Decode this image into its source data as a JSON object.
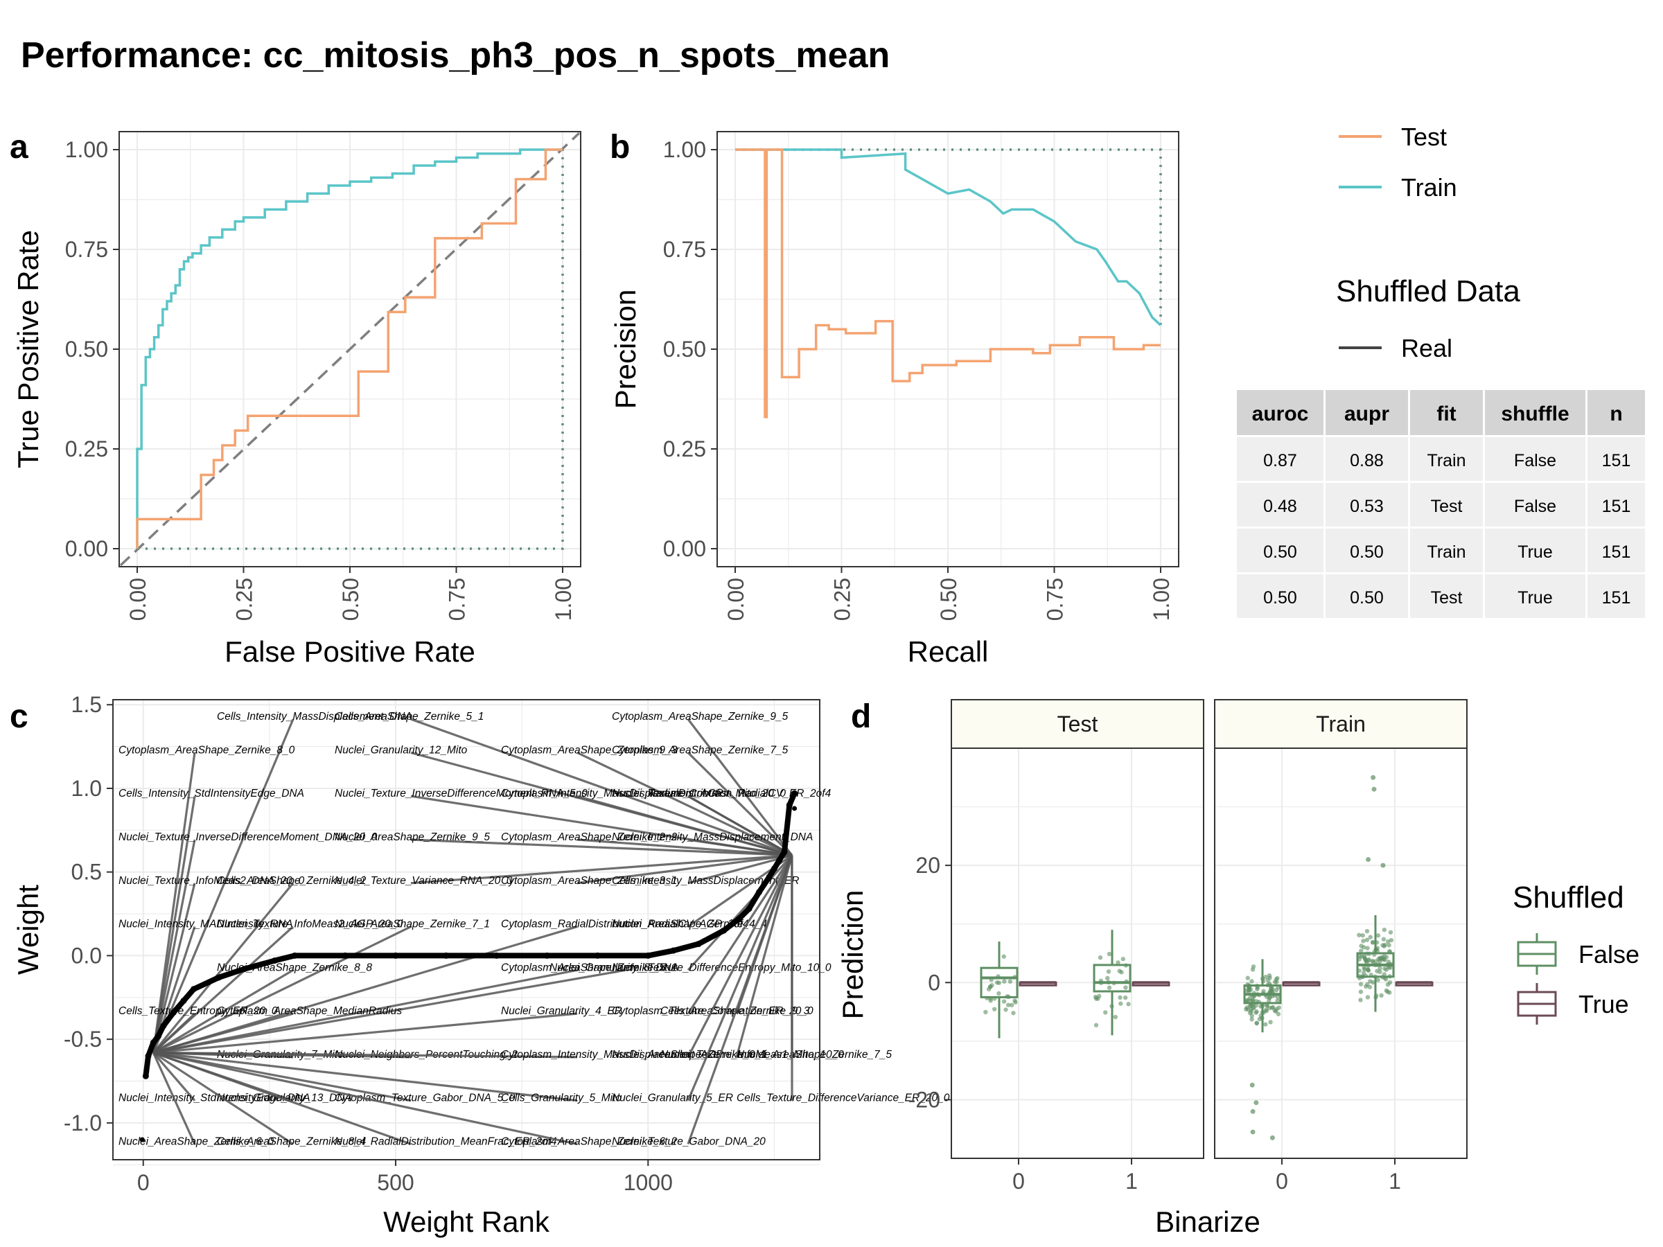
{
  "title": "Performance: cc_mitosis_ph3_pos_n_spots_mean",
  "colors": {
    "test": "#F4A371",
    "train": "#5BC5C8",
    "shuffled_false": "#5E8F63",
    "shuffled_true": "#6B4A57",
    "grid": "#EBEBEB",
    "strip_fill": "#FCFCF2",
    "table_header_fill": "#D4D4D4",
    "table_cell_fill": "#EFEFEF"
  },
  "panels": {
    "a": {
      "tag": "a",
      "xlabel": "False Positive Rate",
      "ylabel": "True Positive Rate",
      "xticks": [
        "0.00",
        "0.25",
        "0.50",
        "0.75",
        "1.00"
      ],
      "yticks": [
        "0.00",
        "0.25",
        "0.50",
        "0.75",
        "1.00"
      ]
    },
    "b": {
      "tag": "b",
      "xlabel": "Recall",
      "ylabel": "Precision",
      "xticks": [
        "0.00",
        "0.25",
        "0.50",
        "0.75",
        "1.00"
      ],
      "yticks": [
        "0.00",
        "0.25",
        "0.50",
        "0.75",
        "1.00"
      ]
    },
    "c": {
      "tag": "c",
      "xlabel": "Weight Rank",
      "ylabel": "Weight",
      "xticks": [
        "0",
        "500",
        "1000"
      ],
      "yticks": [
        "-1.0",
        "-0.5",
        "0.0",
        "0.5",
        "1.0",
        "1.5"
      ]
    },
    "d": {
      "tag": "d",
      "xlabel": "Binarize",
      "ylabel": "Prediction",
      "yticks": [
        "-20",
        "0",
        "20"
      ],
      "facets": [
        "Test",
        "Train"
      ],
      "xcats": [
        "0",
        "1"
      ]
    }
  },
  "legend_fit": {
    "items": [
      "Test",
      "Train"
    ]
  },
  "legend_shuffled_data": {
    "title": "Shuffled Data",
    "items": [
      "Real"
    ]
  },
  "legend_shuffled": {
    "title": "Shuffled",
    "items": [
      "False",
      "True"
    ]
  },
  "metrics_table": {
    "columns": [
      "auroc",
      "aupr",
      "fit",
      "shuffle",
      "n"
    ],
    "rows": [
      [
        "0.87",
        "0.88",
        "Train",
        "False",
        "151"
      ],
      [
        "0.48",
        "0.53",
        "Test",
        "False",
        "151"
      ],
      [
        "0.50",
        "0.50",
        "Train",
        "True",
        "151"
      ],
      [
        "0.50",
        "0.50",
        "Test",
        "True",
        "151"
      ]
    ]
  },
  "chart_data": [
    {
      "panel": "a",
      "type": "line",
      "xlim": [
        0,
        1
      ],
      "ylim": [
        0,
        1
      ],
      "series": [
        {
          "name": "Train",
          "x": [
            0,
            0,
            0.01,
            0.01,
            0.02,
            0.02,
            0.03,
            0.04,
            0.05,
            0.06,
            0.07,
            0.08,
            0.09,
            0.1,
            0.11,
            0.12,
            0.13,
            0.15,
            0.17,
            0.2,
            0.23,
            0.25,
            0.3,
            0.35,
            0.4,
            0.45,
            0.5,
            0.55,
            0.6,
            0.65,
            0.7,
            0.75,
            0.8,
            0.85,
            0.9,
            0.95,
            1
          ],
          "y": [
            0,
            0.25,
            0.3,
            0.41,
            0.44,
            0.48,
            0.5,
            0.53,
            0.56,
            0.6,
            0.62,
            0.64,
            0.66,
            0.7,
            0.72,
            0.73,
            0.74,
            0.76,
            0.78,
            0.8,
            0.82,
            0.83,
            0.85,
            0.87,
            0.89,
            0.91,
            0.92,
            0.93,
            0.94,
            0.96,
            0.97,
            0.98,
            0.99,
            0.99,
            1,
            1,
            1
          ]
        },
        {
          "name": "Test",
          "x": [
            0,
            0,
            0.15,
            0.15,
            0.18,
            0.18,
            0.2,
            0.2,
            0.23,
            0.23,
            0.26,
            0.26,
            0.52,
            0.52,
            0.59,
            0.59,
            0.63,
            0.63,
            0.7,
            0.7,
            0.81,
            0.81,
            0.89,
            0.89,
            0.96,
            0.96,
            1
          ],
          "y": [
            0,
            0.074,
            0.074,
            0.185,
            0.185,
            0.222,
            0.222,
            0.259,
            0.259,
            0.296,
            0.296,
            0.333,
            0.333,
            0.444,
            0.444,
            0.593,
            0.593,
            0.63,
            0.63,
            0.778,
            0.778,
            0.815,
            0.815,
            0.926,
            0.926,
            1,
            1
          ]
        }
      ]
    },
    {
      "panel": "b",
      "type": "line",
      "xlim": [
        0,
        1
      ],
      "ylim": [
        0,
        1
      ],
      "series": [
        {
          "name": "Train",
          "x": [
            0,
            0.25,
            0.25,
            0.4,
            0.4,
            0.45,
            0.5,
            0.55,
            0.6,
            0.63,
            0.65,
            0.7,
            0.75,
            0.78,
            0.8,
            0.85,
            0.87,
            0.9,
            0.92,
            0.95,
            0.98,
            1
          ],
          "y": [
            1,
            1,
            0.98,
            0.99,
            0.95,
            0.92,
            0.89,
            0.9,
            0.87,
            0.84,
            0.85,
            0.85,
            0.82,
            0.79,
            0.77,
            0.75,
            0.72,
            0.67,
            0.67,
            0.64,
            0.58,
            0.56
          ]
        },
        {
          "name": "Test",
          "x": [
            0,
            0.07,
            0.07,
            0.074,
            0.074,
            0.11,
            0.11,
            0.15,
            0.15,
            0.19,
            0.19,
            0.22,
            0.22,
            0.26,
            0.26,
            0.33,
            0.33,
            0.37,
            0.37,
            0.41,
            0.41,
            0.44,
            0.44,
            0.52,
            0.52,
            0.6,
            0.6,
            0.7,
            0.7,
            0.74,
            0.74,
            0.81,
            0.81,
            0.89,
            0.89,
            0.96,
            0.96,
            1
          ],
          "y": [
            1,
            1,
            0.33,
            0.33,
            1,
            1,
            0.43,
            0.43,
            0.5,
            0.5,
            0.56,
            0.56,
            0.55,
            0.55,
            0.54,
            0.54,
            0.57,
            0.57,
            0.42,
            0.42,
            0.44,
            0.44,
            0.46,
            0.46,
            0.47,
            0.47,
            0.5,
            0.5,
            0.49,
            0.49,
            0.51,
            0.51,
            0.53,
            0.53,
            0.5,
            0.5,
            0.51,
            0.51
          ]
        }
      ]
    },
    {
      "panel": "c",
      "type": "scatter",
      "xlim": [
        -60,
        1340
      ],
      "ylim": [
        -1.22,
        1.53
      ],
      "series": [
        {
          "name": "weights",
          "x": [
            5,
            10,
            20,
            30,
            40,
            60,
            80,
            100,
            150,
            200,
            260,
            300,
            400,
            500,
            600,
            700,
            800,
            900,
            1000,
            1050,
            1100,
            1150,
            1180,
            1200,
            1220,
            1240,
            1250,
            1260,
            1270,
            1280,
            1290
          ],
          "y": [
            -0.72,
            -0.6,
            -0.52,
            -0.48,
            -0.42,
            -0.34,
            -0.27,
            -0.2,
            -0.13,
            -0.08,
            -0.03,
            0,
            0,
            0,
            0,
            0,
            0,
            0,
            0,
            0.03,
            0.07,
            0.15,
            0.22,
            0.28,
            0.38,
            0.47,
            0.52,
            0.57,
            0.62,
            0.9,
            0.97
          ]
        }
      ],
      "annotations": [
        "Cells_Intensity_MassDisplacement_DNA",
        "Cells_AreaShape_Zernike_5_1",
        "Cytoplasm_AreaShape_Zernike_9_5",
        "Cytoplasm_AreaShape_Zernike_8_0",
        "Nuclei_Granularity_12_Mito",
        "Cytoplasm_AreaShape_Zernike_7_5",
        "Cytoplasm_AreaShape_Zernike_9_3",
        "Cells_Intensity_StdIntensityEdge_DNA",
        "Nuclei_Texture_InverseDifferenceMoment_RNA_5_0",
        "Nuclei_RadialDistribution_RadialCV_ER_2of4",
        "Cytoplasm_Intensity_MassDisplacement_AGP",
        "Nuclei_Texture_Contrast_Mito_20_0",
        "Nuclei_Texture_InverseDifferenceMoment_DNA_20_0",
        "Nuclei_AreaShape_Zernike_9_5",
        "Cytoplasm_AreaShape_Zernike_2_2",
        "Nuclei_Intensity_MassDisplacement_DNA",
        "Nuclei_Texture_InfoMeas2_DNA_20_0",
        "Cells_AreaShape_Zernike_4_2",
        "Nuclei_Texture_Variance_RNA_20_0",
        "Cytoplasm_AreaShape_Zernike_3_1",
        "Cells_Intensity_MassDisplacement_ER",
        "Nuclei_Intensity_MADIntensity_RNA",
        "Nuclei_Texture_InfoMeas2_AGP_20_0",
        "Nuclei_AreaShape_Zernike_7_1",
        "Cytoplasm_RadialDistribution_RadialCV_AGP_2of4",
        "Nuclei_AreaShape_Zernike_4_4",
        "Nuclei_AreaShape_Zernike_8_8",
        "Cytoplasm_AreaShape_Zernike_5_1",
        "Nuclei_Granularity_8_DNA",
        "Nuclei_Texture_DifferenceEntropy_Mito_10_0",
        "Cells_Texture_Entropy_ER_20_0",
        "Cytoplasm_AreaShape_MedianRadius",
        "Nuclei_Granularity_4_ER",
        "Cytoplasm_Texture_Correlation_ER_20_0",
        "Cells_AreaShape_Zernike_9_3",
        "Nuclei_Granularity_7_Mito",
        "Nuclei_Neighbors_PercentTouching_2",
        "Cytoplasm_Intensity_MassDisplacement_AGP",
        "Nuclei_AreaShape_Zernike_9_1",
        "Nuclei_Texture_InfoMeas1_Mito_10_0",
        "Nuclei_AreaShape_Zernike_7_5",
        "Nuclei_Intensity_StdIntensityEdge_DNA",
        "Nuclei_Granularity_13_DNA",
        "Cytoplasm_Texture_Gabor_DNA_5_0",
        "Cells_Granularity_5_Mito",
        "Nuclei_Granularity_5_ER",
        "Cells_Texture_DifferenceVariance_ER_20_0",
        "Nuclei_AreaShape_Zernike_6_0",
        "Cells_AreaShape_Zernike_8_4",
        "Nuclei_RadialDistribution_MeanFrac_ER_2of4",
        "Cytoplasm_AreaShape_Zernike_6_2",
        "Nuclei_Texture_Gabor_DNA_20"
      ]
    },
    {
      "panel": "d",
      "type": "box",
      "ylim": [
        -30,
        40
      ],
      "facets": [
        "Test",
        "Train"
      ],
      "categories": [
        "0",
        "1"
      ],
      "series": [
        {
          "name": "False",
          "boxes": [
            {
              "facet": "Test",
              "x": "0",
              "q1": -2.5,
              "median": 0.8,
              "q3": 2.5,
              "lo": -9.5,
              "hi": 7
            },
            {
              "facet": "Test",
              "x": "1",
              "q1": -1.5,
              "median": 0,
              "q3": 3,
              "lo": -9,
              "hi": 9
            },
            {
              "facet": "Train",
              "x": "0",
              "q1": -3.5,
              "median": -2,
              "q3": -0.5,
              "lo": -8.5,
              "hi": 4
            },
            {
              "facet": "Train",
              "x": "1",
              "q1": 1,
              "median": 3,
              "q3": 5,
              "lo": -5,
              "hi": 11.5
            }
          ]
        },
        {
          "name": "True",
          "boxes": [
            {
              "facet": "Test",
              "x": "0",
              "q1": 0,
              "median": 0,
              "q3": 0,
              "lo": 0,
              "hi": 0
            },
            {
              "facet": "Test",
              "x": "1",
              "q1": 0,
              "median": 0,
              "q3": 0,
              "lo": 0,
              "hi": 0
            },
            {
              "facet": "Train",
              "x": "0",
              "q1": 0,
              "median": 0,
              "q3": 0,
              "lo": 0,
              "hi": 0
            },
            {
              "facet": "Train",
              "x": "1",
              "q1": 0,
              "median": 0,
              "q3": 0,
              "lo": 0,
              "hi": 0
            }
          ]
        }
      ],
      "outliers": [
        {
          "facet": "Train",
          "x": "1",
          "values": [
            21,
            20,
            33,
            35
          ]
        },
        {
          "facet": "Train",
          "x": "0",
          "values": [
            -17.5,
            -20.5,
            -22,
            -25.5,
            -26.5
          ]
        }
      ]
    }
  ]
}
